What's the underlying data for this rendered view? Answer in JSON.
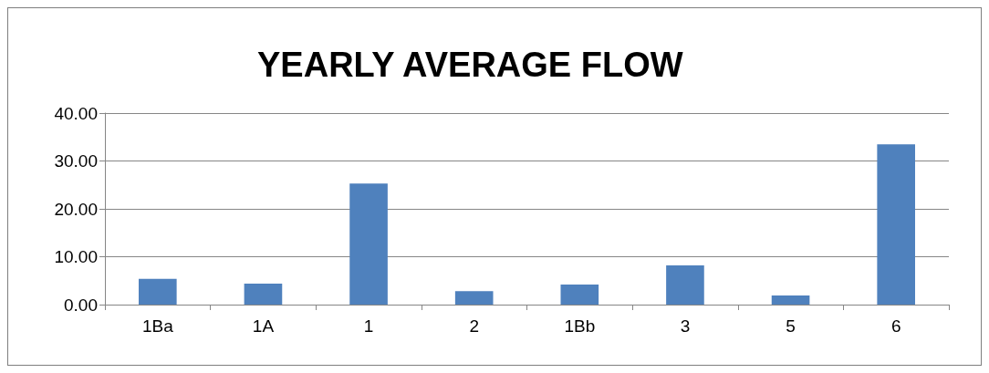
{
  "chart_data": {
    "type": "bar",
    "title": "YEARLY AVERAGE FLOW",
    "categories": [
      "1Ba",
      "1A",
      "1",
      "2",
      "1Bb",
      "3",
      "5",
      "6"
    ],
    "values": [
      5.4,
      4.4,
      25.3,
      2.8,
      4.2,
      8.2,
      1.9,
      33.5
    ],
    "color": "#4f81bd",
    "ylim": [
      0,
      40
    ],
    "yticks": [
      {
        "value": 0,
        "label": "0.00"
      },
      {
        "value": 10,
        "label": "10.00"
      },
      {
        "value": 20,
        "label": "20.00"
      },
      {
        "value": 30,
        "label": "30.00"
      },
      {
        "value": 40,
        "label": "40.00"
      }
    ],
    "grid": "y"
  }
}
